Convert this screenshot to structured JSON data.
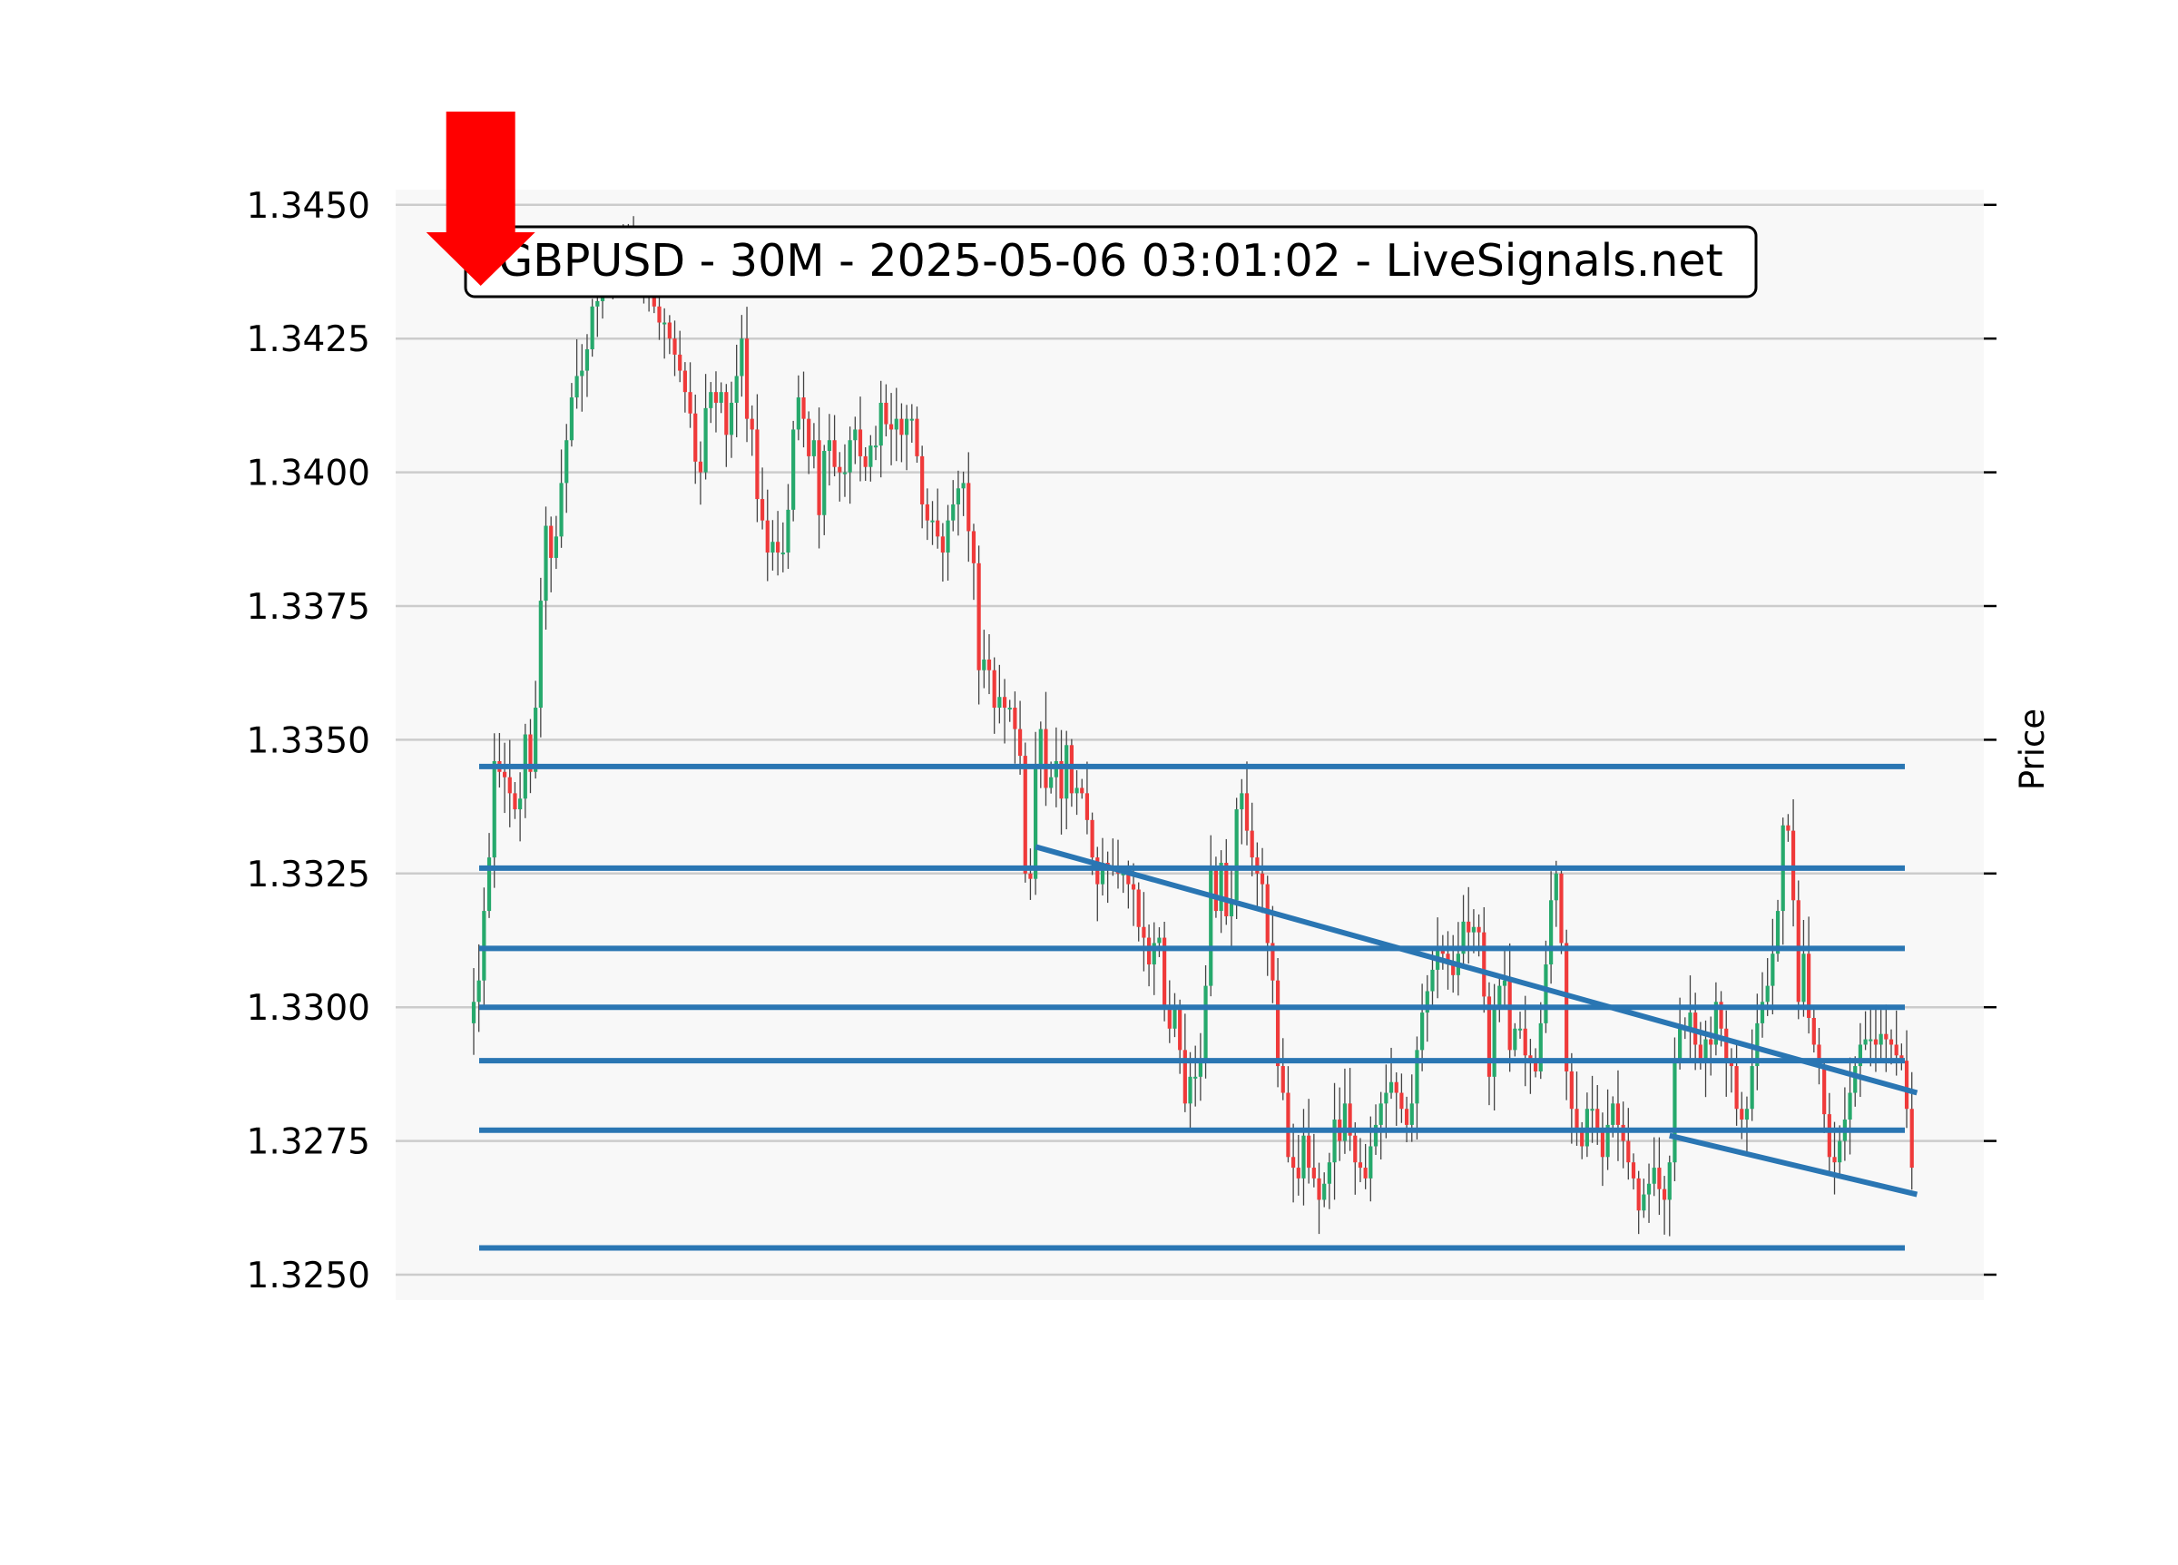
{
  "chart_data": {
    "type": "candlestick",
    "title": "GBPUSD - 30M - 2025-05-06 03:01:02 - LiveSignals.net",
    "ylabel": "Price",
    "xlabel": "",
    "ylim": [
      1.3245,
      1.3453
    ],
    "yticks": [
      "1.3250",
      "1.3275",
      "1.3300",
      "1.3325",
      "1.3350",
      "1.3375",
      "1.3400",
      "1.3425",
      "1.3450"
    ],
    "grid": "horizontal",
    "background": "#f8f8f8",
    "colors": {
      "up": "#26a96c",
      "down": "#ef3a3a",
      "wick": "#444444",
      "lines": "#2a76b3",
      "signal": "#ff0000",
      "grid": "#cccccc"
    },
    "closes": [
      1.3301,
      1.3305,
      1.3318,
      1.3328,
      1.3346,
      1.3344,
      1.3343,
      1.334,
      1.3337,
      1.3339,
      1.3351,
      1.3344,
      1.3356,
      1.3376,
      1.339,
      1.3384,
      1.3388,
      1.3398,
      1.3406,
      1.3414,
      1.3418,
      1.3419,
      1.3423,
      1.3431,
      1.3432,
      1.3437,
      1.3437,
      1.3438,
      1.344,
      1.3442,
      1.3441,
      1.3439,
      1.344,
      1.3436,
      1.3434,
      1.3431,
      1.3428,
      1.3428,
      1.3425,
      1.3422,
      1.3419,
      1.3415,
      1.3411,
      1.3402,
      1.34,
      1.3412,
      1.3415,
      1.3413,
      1.3415,
      1.3407,
      1.3413,
      1.3418,
      1.3425,
      1.341,
      1.3408,
      1.3395,
      1.3391,
      1.3385,
      1.3387,
      1.3385,
      1.3385,
      1.3393,
      1.3408,
      1.3414,
      1.341,
      1.3403,
      1.3406,
      1.3392,
      1.3404,
      1.3406,
      1.3401,
      1.34,
      1.34,
      1.3406,
      1.3408,
      1.3403,
      1.3401,
      1.3405,
      1.3405,
      1.3413,
      1.3409,
      1.3408,
      1.341,
      1.3407,
      1.341,
      1.341,
      1.3403,
      1.3394,
      1.3391,
      1.3391,
      1.3388,
      1.3385,
      1.3391,
      1.3394,
      1.3397,
      1.3398,
      1.3389,
      1.3383,
      1.3363,
      1.3365,
      1.3363,
      1.3356,
      1.3358,
      1.3356,
      1.3356,
      1.3352,
      1.3347,
      1.3325,
      1.3324,
      1.3345,
      1.3352,
      1.3341,
      1.3343,
      1.3346,
      1.3339,
      1.3349,
      1.334,
      1.3341,
      1.334,
      1.3335,
      1.3328,
      1.3323,
      1.3327,
      1.3326,
      1.3326,
      1.3325,
      1.3325,
      1.3323,
      1.3322,
      1.3315,
      1.3313,
      1.3308,
      1.3312,
      1.3313,
      1.33,
      1.3296,
      1.33,
      1.3292,
      1.3282,
      1.3287,
      1.3287,
      1.329,
      1.3304,
      1.3326,
      1.3318,
      1.3327,
      1.3317,
      1.332,
      1.3337,
      1.334,
      1.3333,
      1.3328,
      1.3325,
      1.3323,
      1.3312,
      1.3305,
      1.3289,
      1.3284,
      1.3272,
      1.327,
      1.3268,
      1.3276,
      1.327,
      1.3268,
      1.3264,
      1.3267,
      1.3271,
      1.3279,
      1.3275,
      1.3282,
      1.3276,
      1.3271,
      1.327,
      1.3268,
      1.3274,
      1.3278,
      1.3282,
      1.3284,
      1.3286,
      1.3284,
      1.3281,
      1.3278,
      1.3282,
      1.3292,
      1.3299,
      1.3303,
      1.3307,
      1.3311,
      1.331,
      1.3308,
      1.3306,
      1.331,
      1.3316,
      1.3314,
      1.3315,
      1.3314,
      1.3302,
      1.3287,
      1.33,
      1.3304,
      1.3305,
      1.3292,
      1.3296,
      1.3296,
      1.3291,
      1.329,
      1.3288,
      1.3297,
      1.3308,
      1.332,
      1.3325,
      1.3312,
      1.3288,
      1.3281,
      1.3277,
      1.3274,
      1.3281,
      1.3281,
      1.3277,
      1.3272,
      1.3278,
      1.3282,
      1.3278,
      1.3275,
      1.3271,
      1.3268,
      1.3262,
      1.3265,
      1.3267,
      1.327,
      1.3266,
      1.3264,
      1.3271,
      1.329,
      1.3296,
      1.3296,
      1.3299,
      1.3293,
      1.329,
      1.3294,
      1.3293,
      1.3301,
      1.3296,
      1.329,
      1.3289,
      1.3281,
      1.3279,
      1.3281,
      1.3289,
      1.3297,
      1.3301,
      1.3304,
      1.331,
      1.3318,
      1.3334,
      1.3333,
      1.332,
      1.3301,
      1.331,
      1.3298,
      1.3293,
      1.3289,
      1.328,
      1.3272,
      1.3271,
      1.3275,
      1.3279,
      1.3284,
      1.3289,
      1.3293,
      1.3294,
      1.3294,
      1.3293,
      1.3295,
      1.3294,
      1.3293,
      1.3291,
      1.329,
      1.3281,
      1.327
    ],
    "horizontal_lines": [
      1.3345,
      1.3326,
      1.3311,
      1.33,
      1.329,
      1.3277,
      1.3255
    ],
    "trend_lines": [
      {
        "from": [
          109,
          1.333
        ],
        "to": [
          280,
          1.3284
        ]
      },
      {
        "from": [
          232,
          1.3276
        ],
        "to": [
          280,
          1.3265
        ]
      }
    ],
    "signal": {
      "type": "sell-arrow",
      "candle": 1
    }
  }
}
